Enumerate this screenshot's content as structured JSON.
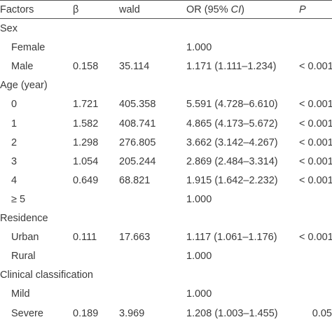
{
  "header": {
    "factors": "Factors",
    "beta": "β",
    "wald": "wald",
    "or_prefix": "OR (95% ",
    "or_ci": "CI",
    "or_suffix": ")",
    "p": "P"
  },
  "rows": [
    {
      "factor": "Sex",
      "indent": false,
      "beta": "",
      "wald": "",
      "or": "",
      "p": ""
    },
    {
      "factor": "Female",
      "indent": true,
      "beta": "",
      "wald": "",
      "or": "1.000",
      "p": ""
    },
    {
      "factor": "Male",
      "indent": true,
      "beta": "0.158",
      "wald": "35.114",
      "or": "1.171 (1.111–1.234)",
      "p": "< 0.001"
    },
    {
      "factor": "Age (year)",
      "indent": false,
      "beta": "",
      "wald": "",
      "or": "",
      "p": ""
    },
    {
      "factor": "0",
      "indent": true,
      "beta": "1.721",
      "wald": "405.358",
      "or": "5.591 (4.728–6.610)",
      "p": "< 0.001"
    },
    {
      "factor": "1",
      "indent": true,
      "beta": "1.582",
      "wald": "408.741",
      "or": "4.865 (4.173–5.672)",
      "p": "< 0.001"
    },
    {
      "factor": "2",
      "indent": true,
      "beta": "1.298",
      "wald": "276.805",
      "or": "3.662 (3.142–4.267)",
      "p": "< 0.001"
    },
    {
      "factor": "3",
      "indent": true,
      "beta": "1.054",
      "wald": "205.244",
      "or": "2.869 (2.484–3.314)",
      "p": "< 0.001"
    },
    {
      "factor": "4",
      "indent": true,
      "beta": "0.649",
      "wald": "68.821",
      "or": "1.915 (1.642–2.232)",
      "p": "< 0.001"
    },
    {
      "factor": "≥ 5",
      "indent": true,
      "beta": "",
      "wald": "",
      "or": "1.000",
      "p": ""
    },
    {
      "factor": "Residence",
      "indent": false,
      "beta": "",
      "wald": "",
      "or": "",
      "p": ""
    },
    {
      "factor": "Urban",
      "indent": true,
      "beta": "0.111",
      "wald": "17.663",
      "or": "1.117 (1.061–1.176)",
      "p": "< 0.001"
    },
    {
      "factor": "Rural",
      "indent": true,
      "beta": "",
      "wald": "",
      "or": "1.000",
      "p": ""
    },
    {
      "factor": "Clinical classification",
      "indent": false,
      "beta": "",
      "wald": "",
      "or": "",
      "p": ""
    },
    {
      "factor": "Mild",
      "indent": true,
      "beta": "",
      "wald": "",
      "or": "1.000",
      "p": ""
    },
    {
      "factor": "Severe",
      "indent": true,
      "beta": "0.189",
      "wald": "3.969",
      "or": "1.208 (1.003–1.455)",
      "p": "0.05"
    }
  ]
}
